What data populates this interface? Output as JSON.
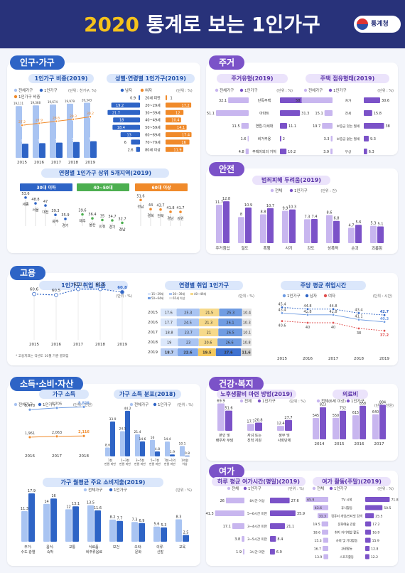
{
  "header": {
    "year": "2020",
    "title": "통계로 보는 1인가구",
    "logo": "통계청"
  },
  "sections": {
    "population": "인구·가구",
    "housing": "주거",
    "safety": "안전",
    "employment": "고용",
    "income": "소득·소비·자산",
    "health": "건강·복지",
    "leisure": "여가"
  },
  "legend": {
    "total_hh": "전체가구",
    "one_hh": "1인가구",
    "all": "전체",
    "male": "남자",
    "female": "여자",
    "one_ratio": "1인가구 비중",
    "unit_ratio": "(단위 : 천가구, %)",
    "unit_pct": "(단위 : %)",
    "unit_cnt": "(단위 : 건)",
    "unit_wan": "(단위 : 만원)",
    "unit_hr": "(단위 : 시간)",
    "unit_pct_age": "(단위 : %)",
    "all_hh": "전체(6세 이상)",
    "unit_pct_person": "(단위 : 천원)"
  },
  "chart_data": [
    {
      "id": "hh_ratio",
      "type": "bar",
      "title": "1인가구 비중(2019)",
      "categories": [
        "2015",
        "2016",
        "2017",
        "2018",
        "2019"
      ],
      "series": [
        {
          "name": "전체가구",
          "values": [
            19111,
            19368,
            19674,
            19979,
            20343
          ]
        },
        {
          "name": "1인가구",
          "values": [
            5203,
            5398,
            5619,
            5849,
            6148
          ]
        }
      ],
      "ratio": [
        27.2,
        27.9,
        28.6,
        29.3,
        30.2
      ]
    },
    {
      "id": "age_sex",
      "type": "bar",
      "title": "성별·연령별 1인가구(2019)",
      "categories": [
        "20세 미만",
        "20~29세",
        "30~39세",
        "40~49세",
        "50~59세",
        "60~69세",
        "70~79세",
        "80세 이상"
      ],
      "series": [
        {
          "name": "남자",
          "values": [
            0.9,
            19.2,
            21.7,
            18.0,
            18.4,
            13.0,
            6.0,
            2.6
          ]
        },
        {
          "name": "여자",
          "values": [
            1.0,
            17.2,
            12.0,
            10.4,
            14.1,
            17.4,
            16.0,
            11.9
          ]
        }
      ]
    },
    {
      "id": "regions",
      "type": "bar",
      "title": "연령별 1인가구 상위 5개지역(2019)",
      "groups": [
        {
          "label": "30대 이하",
          "regions": [
            "세종",
            "서울",
            "대전",
            "광주",
            "경기"
          ],
          "values": [
            53.6,
            48.8,
            47.0,
            39.3,
            35.9
          ]
        },
        {
          "label": "40~50대",
          "regions": [
            "제주",
            "울산",
            "인천",
            "경기",
            "경남"
          ],
          "values": [
            39.6,
            36.4,
            35.0,
            34.7,
            32.7
          ]
        },
        {
          "label": "60대 이상",
          "regions": [
            "전남",
            "경북",
            "전북",
            "경남",
            "강원"
          ],
          "values": [
            51.6,
            44.0,
            43.7,
            41.8,
            41.7
          ]
        }
      ]
    },
    {
      "id": "housing_type",
      "type": "bar",
      "title": "주거유형(2019)",
      "categories": [
        "단독주택",
        "아파트",
        "연립·다세대",
        "비거주용",
        "주택이외의 거처"
      ],
      "series": [
        {
          "name": "전체가구",
          "values": [
            32.1,
            51.1,
            11.5,
            1.6,
            4.8
          ]
        },
        {
          "name": "1인가구",
          "values": [
            45.4,
            31.3,
            11.1,
            2.0,
            10.2
          ]
        }
      ]
    },
    {
      "id": "tenure",
      "type": "bar",
      "title": "주택 점유형태(2019)",
      "categories": [
        "자가",
        "전세",
        "보증금 있는 월세",
        "보증금 없는 월세",
        "무상"
      ],
      "series": [
        {
          "name": "전체가구",
          "values": [
            58.0,
            15.1,
            19.7,
            3.3,
            3.9
          ]
        },
        {
          "name": "1인가구",
          "values": [
            30.6,
            15.8,
            38.0,
            9.3,
            6.3
          ]
        }
      ]
    },
    {
      "id": "crime_fear",
      "type": "bar",
      "title": "범죄피해 두려움(2019)",
      "categories": [
        "주거침입",
        "절도",
        "폭행",
        "사기",
        "강도",
        "성폭력",
        "손괴",
        "괴롭힘"
      ],
      "series": [
        {
          "name": "전체",
          "values": [
            11.7,
            8.0,
            8.8,
            9.9,
            7.3,
            8.6,
            4.7,
            5.3
          ]
        },
        {
          "name": "1인가구",
          "values": [
            12.8,
            10.9,
            10.7,
            10.3,
            7.4,
            6.8,
            5.6,
            5.1
          ]
        }
      ]
    },
    {
      "id": "emp_rate",
      "type": "line",
      "title": "1인가구 취업 비중",
      "x": [
        "2015",
        "2016",
        "2017",
        "2018",
        "2019"
      ],
      "values": [
        60.6,
        60.5,
        61.1,
        61.1,
        60.8
      ],
      "note": "* 고용지표는 각년도 10월 기준 결과임"
    },
    {
      "id": "emp_age",
      "type": "table",
      "title": "연령별 취업 1인가구",
      "legend": [
        "15~29세",
        "30~39세",
        "40~49세",
        "50~64세",
        "65세 이상"
      ],
      "rows": [
        [
          "2015",
          17.6,
          25.3,
          21.5,
          25.3,
          10.4
        ],
        [
          "2016",
          17.7,
          24.5,
          21.3,
          26.1,
          10.3
        ],
        [
          "2017",
          18.8,
          23.7,
          21.0,
          26.5,
          10.1
        ],
        [
          "2018",
          19.0,
          23.0,
          20.6,
          26.6,
          10.8
        ],
        [
          "2019",
          18.7,
          22.6,
          19.5,
          27.6,
          11.6
        ]
      ]
    },
    {
      "id": "work_hours",
      "type": "line",
      "title": "주당 평균 취업시간",
      "x": [
        "2015",
        "2016",
        "2017",
        "2018",
        "2019"
      ],
      "series": [
        {
          "name": "1인가구",
          "values": [
            43.4,
            42.8,
            42.8,
            41.1,
            40.3
          ]
        },
        {
          "name": "남자",
          "values": [
            45.4,
            44.8,
            44.8,
            43.4,
            42.7
          ]
        },
        {
          "name": "여자",
          "values": [
            40.6,
            40.0,
            40.0,
            38.0,
            37.2
          ]
        }
      ]
    },
    {
      "id": "income",
      "type": "line",
      "title": "가구 소득",
      "x": [
        "2016",
        "2017",
        "2018"
      ],
      "series": [
        {
          "name": "전체가구",
          "values": [
            5478,
            5705,
            5828
          ]
        },
        {
          "name": "1인가구",
          "values": [
            1961,
            2063,
            2116
          ]
        }
      ]
    },
    {
      "id": "income_dist",
      "type": "bar",
      "title": "가구 소득 분포(2018)",
      "categories": [
        "1천 만원 미만",
        "1~3천 만원 미만",
        "3~5천 만원 미만",
        "5~7천 만원 미만",
        "7천~1억 만원 미만",
        "1억원 이상"
      ],
      "series": [
        {
          "name": "전체가구",
          "values": [
            8.6,
            24.5,
            21.4,
            16.0,
            14.4,
            10.1
          ]
        },
        {
          "name": "1인가구",
          "values": [
            33.9,
            44.2,
            14.6,
            4.8,
            1.9,
            0.8
          ]
        }
      ]
    },
    {
      "id": "consumption",
      "type": "bar",
      "title": "가구 월평균 주요 소비지출(2019)",
      "categories": [
        "주거·수도·광열",
        "음식·숙박",
        "교통",
        "식료품·비주류음료",
        "보건",
        "오락·문화",
        "의류·신발",
        "교육"
      ],
      "series": [
        {
          "name": "전체가구",
          "values": [
            11.3,
            14.0,
            12.0,
            13.5,
            8.2,
            7.3,
            5.6,
            8.3
          ]
        },
        {
          "name": "1인가구",
          "values": [
            17.9,
            16.0,
            13.1,
            11.6,
            7.7,
            6.9,
            5.3,
            2.5
          ]
        }
      ]
    },
    {
      "id": "elder_care",
      "type": "bar",
      "title": "노후생활비 마련 방법(2019)",
      "categories": [
        "본인 및 배우자 부담",
        "자녀 또는 친척 지원",
        "정부 및 사회단체"
      ],
      "series": [
        {
          "name": "전체",
          "values": [
            69.9,
            17.7,
            12.4
          ]
        },
        {
          "name": "1인가구",
          "values": [
            51.6,
            20.8,
            27.7
          ]
        }
      ]
    },
    {
      "id": "medical",
      "type": "bar",
      "title": "의료비",
      "categories": [
        "2014",
        "2015",
        "2016",
        "2017"
      ],
      "series": [
        {
          "name": "전체(6세 이상)",
          "values": [
            545,
            550,
            615,
            640
          ]
        },
        {
          "name": "1인가구",
          "values": [
            823,
            732,
            858,
            884
          ]
        }
      ]
    },
    {
      "id": "leisure_time",
      "type": "bar",
      "title": "하루 평균 여가시간(평일)(2019)",
      "categories": [
        "8시간 이상",
        "5~6시간 미만",
        "3~4시간 미만",
        "3~5시간 미만",
        "3시간 미만"
      ],
      "series": [
        {
          "name": "전체",
          "values": [
            26.0,
            41.3,
            17.1,
            3.8,
            1.9
          ]
        },
        {
          "name": "1인가구",
          "values": [
            27.6,
            35.9,
            21.1,
            8.4,
            6.9
          ]
        }
      ]
    },
    {
      "id": "leisure_act",
      "type": "bar",
      "title": "여가 활동(주말)(2019)",
      "categories": [
        "TV 시청",
        "휴식활동",
        "컴퓨터 게임/인터넷 검색",
        "문화예술 관람",
        "취미 자기계발 활동",
        "사회 및 기타활동",
        "관광활동",
        "스포츠활동"
      ],
      "series": [
        {
          "name": "전체",
          "values": [
            65.9,
            43.6,
            31.3,
            19.5,
            18.6,
            15.3,
            16.7,
            13.9
          ]
        },
        {
          "name": "1인가구",
          "values": [
            71.8,
            50.5,
            25.5,
            17.2,
            16.9,
            15.9,
            12.8,
            12.2
          ]
        }
      ]
    }
  ],
  "colors": {
    "navy": "#28327a",
    "blue": "#2e64c6",
    "purple": "#7b52c8",
    "lightBlue": "#a9c4f2",
    "lavender": "#c8b6ef",
    "orange": "#f08a2a",
    "green": "#4caf50"
  }
}
